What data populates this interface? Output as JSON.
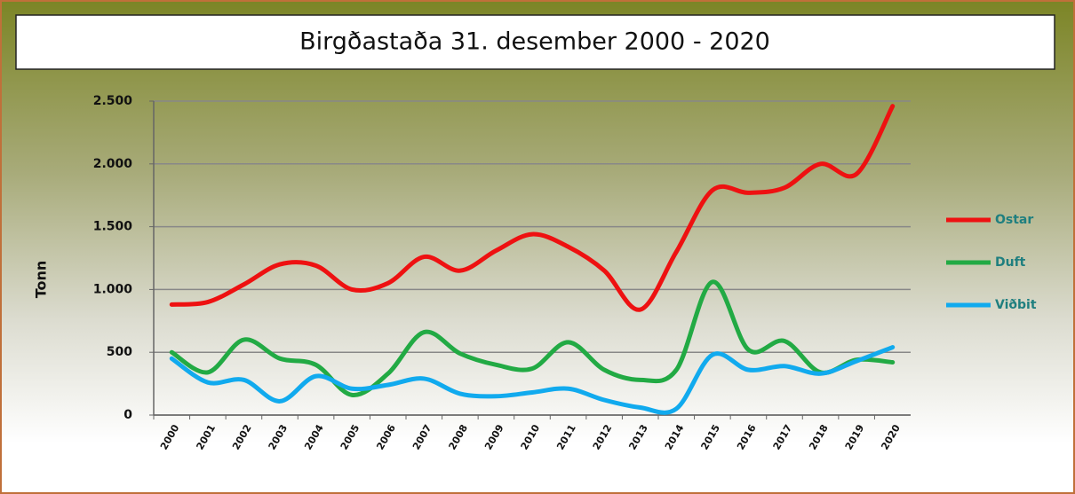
{
  "chart_data": {
    "type": "line",
    "title": "Birgðastaða 31. desember 2000 - 2020",
    "y_label": "Tonn",
    "categories": [
      "2000",
      "2001",
      "2002",
      "2003",
      "2004",
      "2005",
      "2006",
      "2007",
      "2008",
      "2009",
      "2010",
      "2011",
      "2012",
      "2013",
      "2014",
      "2015",
      "2016",
      "2017",
      "2018",
      "2019",
      "2020"
    ],
    "series": [
      {
        "name": "Ostar",
        "color": "#ee1111",
        "values": [
          880,
          900,
          1040,
          1200,
          1190,
          1000,
          1050,
          1260,
          1150,
          1310,
          1440,
          1340,
          1150,
          840,
          1300,
          1790,
          1770,
          1810,
          2000,
          1920,
          2460
        ]
      },
      {
        "name": "Duft",
        "color": "#22aa44",
        "values": [
          500,
          340,
          600,
          450,
          400,
          160,
          330,
          660,
          490,
          400,
          370,
          580,
          360,
          280,
          360,
          1060,
          520,
          590,
          340,
          440,
          420
        ]
      },
      {
        "name": "Viðbit",
        "color": "#11aaee",
        "values": [
          450,
          260,
          280,
          110,
          310,
          210,
          240,
          290,
          170,
          150,
          180,
          210,
          120,
          60,
          50,
          480,
          360,
          390,
          330,
          430,
          540
        ]
      }
    ],
    "ylim": [
      0,
      2500
    ],
    "yticks": [
      0,
      500,
      {
        "value": 1000,
        "label": "1.000"
      },
      {
        "value": 1500,
        "label": "1.500"
      },
      {
        "value": 2000,
        "label": "2.000"
      },
      {
        "value": 2500,
        "label": "2.500"
      }
    ],
    "grid": true,
    "legend": "right"
  }
}
